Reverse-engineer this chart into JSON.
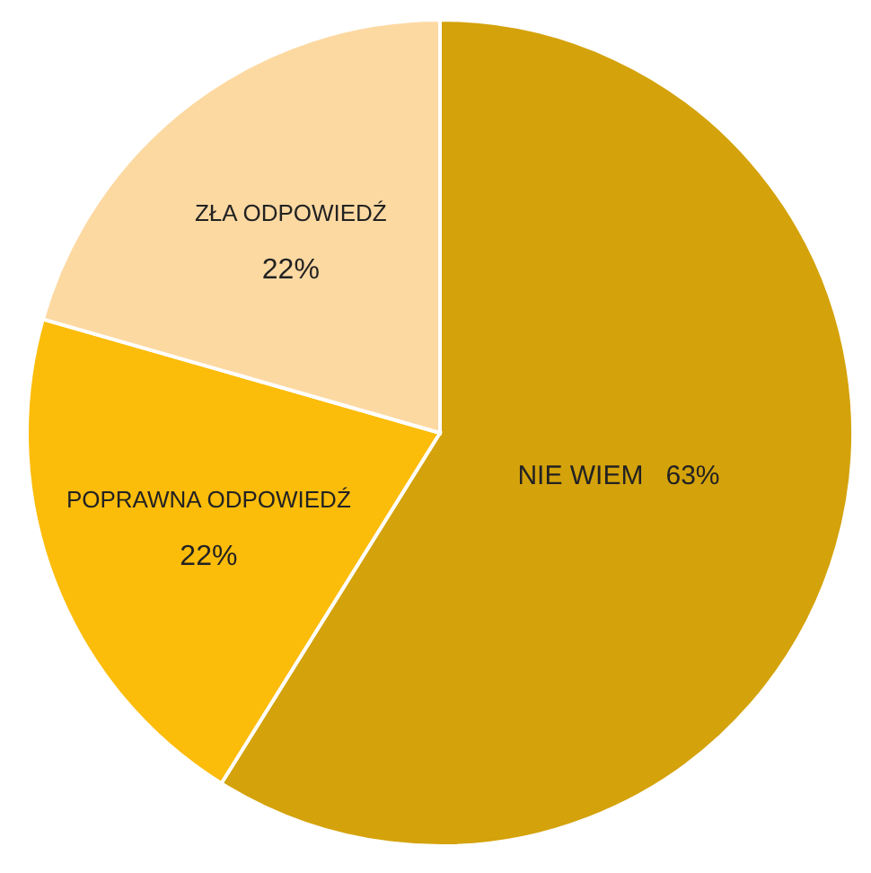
{
  "chart_data": {
    "type": "pie",
    "categories": [
      "NIE WIEM",
      "POPRAWNA ODPOWIEDŹ",
      "ZŁA ODPOWIEDŹ"
    ],
    "values": [
      63,
      22,
      22
    ],
    "value_labels": [
      "63%",
      "22%",
      "22%"
    ],
    "colors": [
      "#d4a20a",
      "#fcbc0a",
      "#fdd9a2"
    ]
  }
}
